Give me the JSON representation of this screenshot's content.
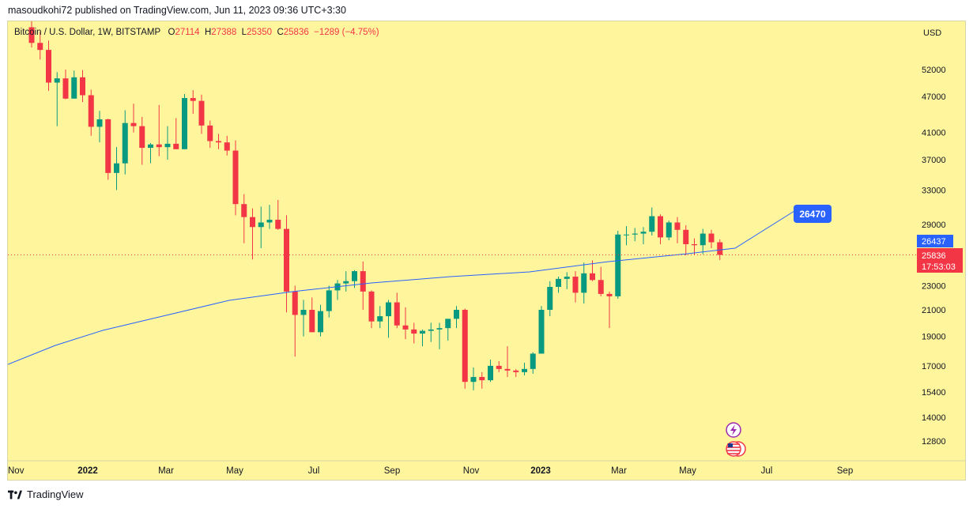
{
  "header": {
    "publisher": "masoudkohi72 published on TradingView.com, Jun 11, 2023 09:36 UTC+3:30"
  },
  "legend": {
    "symbol": "Bitcoin / U.S. Dollar, 1W, BITSTAMP",
    "o_label": "O",
    "o_value": "27114",
    "h_label": "H",
    "h_value": "27388",
    "l_label": "L",
    "l_value": "25350",
    "c_label": "C",
    "c_value": "25836",
    "change": "−1289 (−4.75%)"
  },
  "price_axis": {
    "currency": "USD",
    "ticks": [
      "52000",
      "47000",
      "41000",
      "37000",
      "33000",
      "29000",
      "23000",
      "21000",
      "19000",
      "17000",
      "15400",
      "14000",
      "12800"
    ]
  },
  "time_axis": {
    "ticks": [
      "Nov",
      "2022",
      "Mar",
      "May",
      "Jul",
      "Sep",
      "Nov",
      "2023",
      "Mar",
      "May",
      "Jul",
      "Sep"
    ]
  },
  "markers": {
    "ma_label": "26470",
    "ma_last": "26437",
    "last_price": "25836",
    "countdown": "17:53:03"
  },
  "colors": {
    "up": "#089981",
    "down": "#f23645",
    "ma_line": "#2962ff",
    "background": "#fff59d"
  },
  "chart_data": {
    "type": "candlestick",
    "series": [
      {
        "name": "",
        "ohlc": [
          [
            61000,
            67000,
            56500,
            57500
          ],
          [
            57500,
            60000,
            54000,
            56000
          ],
          [
            56000,
            58000,
            48000,
            49500
          ],
          [
            49500,
            51500,
            42000,
            50300
          ],
          [
            50300,
            52000,
            46500,
            46600
          ],
          [
            46600,
            51800,
            46600,
            50500
          ],
          [
            50500,
            51900,
            46000,
            47200
          ],
          [
            47200,
            48200,
            40500,
            41900
          ],
          [
            41900,
            44500,
            39500,
            43100
          ],
          [
            43100,
            43200,
            34300,
            35200
          ],
          [
            35200,
            38800,
            33000,
            36500
          ],
          [
            36500,
            44600,
            35000,
            42500
          ],
          [
            42500,
            45700,
            41000,
            42000
          ],
          [
            42000,
            43500,
            36300,
            38700
          ],
          [
            38700,
            39400,
            36500,
            39200
          ],
          [
            39200,
            45500,
            37500,
            38800
          ],
          [
            38800,
            42000,
            37000,
            39300
          ],
          [
            39300,
            43300,
            38500,
            38500
          ],
          [
            38500,
            47400,
            38500,
            46700
          ],
          [
            46700,
            48100,
            44000,
            46200
          ],
          [
            46200,
            47300,
            40800,
            42100
          ],
          [
            42100,
            42900,
            38700,
            39700
          ],
          [
            39700,
            40800,
            38500,
            39500
          ],
          [
            39500,
            40500,
            37600,
            38300
          ],
          [
            38300,
            39800,
            30000,
            31300
          ],
          [
            31300,
            32500,
            27000,
            29800
          ],
          [
            29800,
            30800,
            25400,
            28700
          ],
          [
            28700,
            31000,
            26500,
            29200
          ],
          [
            29200,
            31200,
            28500,
            29500
          ],
          [
            29500,
            31800,
            28400,
            28500
          ],
          [
            28500,
            30000,
            20800,
            22500
          ],
          [
            22500,
            23000,
            17600,
            20600
          ],
          [
            20600,
            21800,
            19000,
            21000
          ],
          [
            21000,
            22000,
            19300,
            19300
          ],
          [
            19300,
            21400,
            19000,
            20900
          ],
          [
            20900,
            23000,
            20400,
            22600
          ],
          [
            22600,
            23500,
            21800,
            23200
          ],
          [
            23200,
            24300,
            22500,
            23400
          ],
          [
            23400,
            24400,
            22800,
            24300
          ],
          [
            24300,
            25200,
            21000,
            22500
          ],
          [
            22500,
            22600,
            19600,
            20100
          ],
          [
            20100,
            21300,
            19600,
            20500
          ],
          [
            20500,
            21800,
            18900,
            21600
          ],
          [
            21600,
            22400,
            19600,
            19800
          ],
          [
            19800,
            21200,
            18800,
            19500
          ],
          [
            19500,
            20000,
            18500,
            19200
          ],
          [
            19200,
            19500,
            18300,
            19400
          ],
          [
            19400,
            20000,
            18600,
            19500
          ],
          [
            19500,
            20000,
            18100,
            19600
          ],
          [
            19600,
            20300,
            18700,
            20300
          ],
          [
            20300,
            21300,
            19600,
            21000
          ],
          [
            21000,
            21100,
            15600,
            16000
          ],
          [
            16000,
            16900,
            15500,
            16300
          ],
          [
            16300,
            16600,
            15600,
            16100
          ],
          [
            16100,
            17400,
            16000,
            17000
          ],
          [
            17000,
            17300,
            16600,
            16800
          ],
          [
            16800,
            18300,
            16300,
            16700
          ],
          [
            16700,
            16800,
            16300,
            16600
          ],
          [
            16600,
            17200,
            16400,
            16800
          ],
          [
            16800,
            17900,
            16500,
            17800
          ],
          [
            17800,
            21300,
            17800,
            21000
          ],
          [
            21000,
            23400,
            20500,
            22900
          ],
          [
            22900,
            23800,
            22400,
            23600
          ],
          [
            23600,
            24200,
            22700,
            23800
          ],
          [
            23800,
            24300,
            21600,
            22400
          ],
          [
            22400,
            25100,
            21500,
            24100
          ],
          [
            24100,
            25300,
            23400,
            23500
          ],
          [
            23500,
            24700,
            22100,
            22300
          ],
          [
            22300,
            22500,
            19600,
            22100
          ],
          [
            22100,
            28300,
            21900,
            27900
          ],
          [
            27900,
            28800,
            26800,
            27900
          ],
          [
            27900,
            28600,
            27200,
            28000
          ],
          [
            28000,
            28700,
            26900,
            28200
          ],
          [
            28200,
            30900,
            27800,
            29900
          ],
          [
            29900,
            30100,
            26900,
            27600
          ],
          [
            27600,
            29400,
            27300,
            29200
          ],
          [
            29200,
            29800,
            27000,
            28400
          ],
          [
            28400,
            28900,
            25800,
            26900
          ],
          [
            26900,
            27500,
            25800,
            26800
          ],
          [
            26800,
            28500,
            25900,
            28000
          ],
          [
            28000,
            28400,
            26500,
            27100
          ],
          [
            27100,
            27400,
            25350,
            25836
          ]
        ],
        "moving_average_value": "26437"
      }
    ]
  }
}
